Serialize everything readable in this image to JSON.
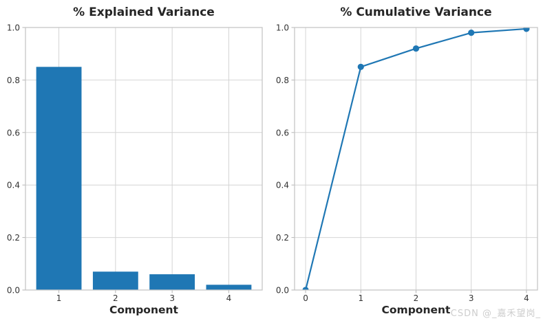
{
  "figure": {
    "watermark": "CSDN @_嘉禾望岗_"
  },
  "colors": {
    "accent": "#1f77b4",
    "grid": "#d4d4d4",
    "spine": "#c6c6c6",
    "tick_mark": "#b5b5b5",
    "title_text": "#262626",
    "label_text": "#262626",
    "tick_text": "#333333",
    "watermark_text": "#cdcdcd",
    "background": "#ffffff"
  },
  "chart_data": [
    {
      "type": "bar",
      "name": "explained-variance",
      "title": "% Explained Variance",
      "xlabel": "Component",
      "ylabel": "",
      "categories": [
        "1",
        "2",
        "3",
        "4"
      ],
      "values": [
        0.85,
        0.07,
        0.06,
        0.02
      ],
      "bar_width": 0.8,
      "xlim": [
        0.41,
        4.59
      ],
      "ylim": [
        0.0,
        1.0
      ],
      "yticks": [
        0.0,
        0.2,
        0.4,
        0.6,
        0.8,
        1.0
      ],
      "grid": true,
      "legend": false
    },
    {
      "type": "line",
      "name": "cumulative-variance",
      "title": "% Cumulative Variance",
      "xlabel": "Component",
      "ylabel": "",
      "x": [
        0,
        1,
        2,
        3,
        4
      ],
      "y": [
        0.0,
        0.85,
        0.92,
        0.98,
        0.995
      ],
      "marker": "circle",
      "xticks": [
        0,
        1,
        2,
        3,
        4
      ],
      "xlim": [
        -0.2,
        4.2
      ],
      "ylim": [
        0.0,
        1.0
      ],
      "yticks": [
        0.0,
        0.2,
        0.4,
        0.6,
        0.8,
        1.0
      ],
      "grid": true,
      "legend": false
    }
  ]
}
